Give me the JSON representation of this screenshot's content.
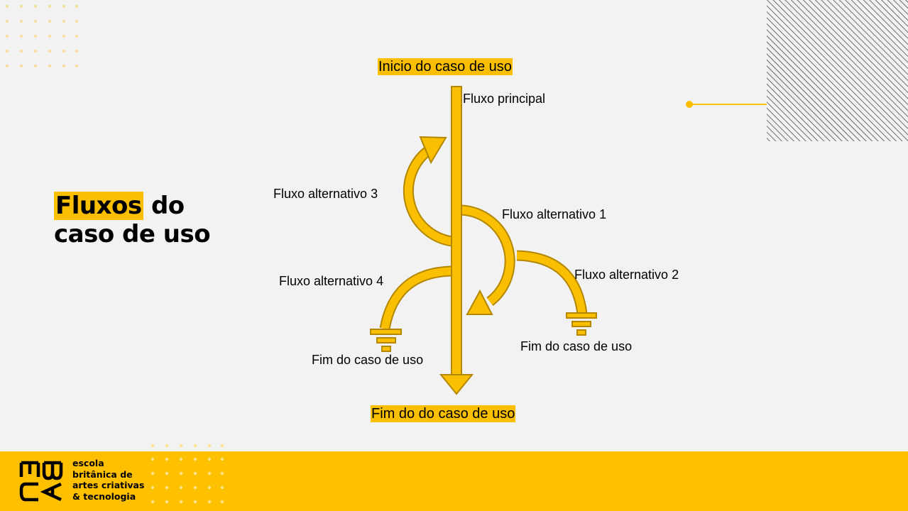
{
  "slide": {
    "title_highlight": "Fluxos",
    "title_rest_line1": " do",
    "title_line2": "caso de uso"
  },
  "diagram": {
    "start_label": "Inicio do caso de uso",
    "main_flow_label": "Fluxo principal",
    "alt_flow_3": "Fluxo alternativo 3",
    "alt_flow_1": "Fluxo alternativo 1",
    "alt_flow_2": "Fluxo alternativo 2",
    "alt_flow_4": "Fluxo alternativo 4",
    "end_left": "Fim do caso de uso",
    "end_right": "Fim do caso de uso",
    "end_main": "Fim do do caso de uso",
    "arrow_color": "#f9bf00",
    "arrow_stroke": "#b38700"
  },
  "footer": {
    "brand_line1": "escola",
    "brand_line2": "britânica de",
    "brand_line3": "artes criativas",
    "brand_line4": "& tecnologia",
    "background": "#ffc000"
  }
}
